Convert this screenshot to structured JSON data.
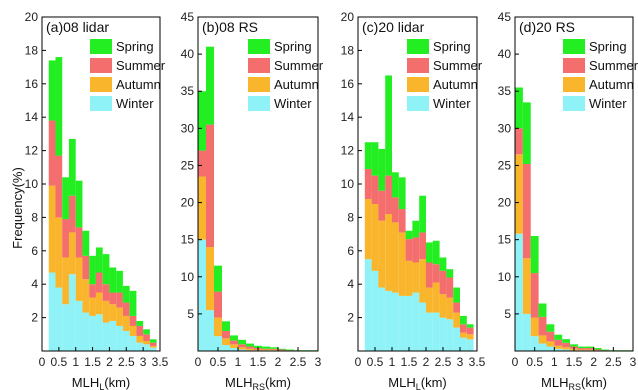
{
  "y_axis_label": "Frequency(%)",
  "season_colors": {
    "Winter": "#8ff2f7",
    "Autumn": "#f9b62d",
    "Summer": "#f46e6e",
    "Spring": "#22ee22"
  },
  "chart_data": [
    {
      "type": "bar",
      "stacked": true,
      "title": "(a)08 lidar",
      "xlabel_main": "MLH",
      "xlabel_sub": "L",
      "xlabel_unit": "(km)",
      "xlim": [
        0,
        3.5
      ],
      "ylim": [
        0,
        20
      ],
      "xticks": [
        0,
        0.5,
        1,
        1.5,
        2,
        2.5,
        3,
        3.5
      ],
      "xtick_labels": [
        "0",
        "0.5",
        "1",
        "1.5",
        "2",
        "2.5",
        "3",
        "3.5"
      ],
      "yticks": [
        2,
        4,
        6,
        8,
        10,
        12,
        14,
        16,
        18,
        20
      ],
      "yticks_labels": [
        "2",
        "4",
        "6",
        "8",
        "10",
        "12",
        "14",
        "16",
        "18",
        "20"
      ],
      "bin_edges": [
        0.2,
        0.4,
        0.6,
        0.8,
        1.0,
        1.2,
        1.4,
        1.6,
        1.8,
        2.0,
        2.2,
        2.4,
        2.6,
        2.8,
        3.0,
        3.2,
        3.4
      ],
      "legend": [
        "Spring",
        "Summer",
        "Autumn",
        "Winter"
      ],
      "legend_position": "top-right",
      "series": [
        {
          "name": "Winter",
          "values": [
            4.7,
            3.8,
            2.8,
            4.6,
            3.0,
            2.3,
            2.1,
            2.2,
            1.7,
            1.8,
            1.5,
            1.2,
            0.9,
            0.5,
            0.4,
            0.2
          ]
        },
        {
          "name": "Autumn",
          "values": [
            5.2,
            4.2,
            2.8,
            2.5,
            2.6,
            2.0,
            1.1,
            1.3,
            1.3,
            1.0,
            1.1,
            0.9,
            0.6,
            0.4,
            0.2,
            0.1
          ]
        },
        {
          "name": "Summer",
          "values": [
            3.9,
            3.7,
            2.3,
            2.2,
            1.8,
            1.4,
            0.8,
            1.2,
            1.0,
            0.7,
            0.9,
            0.8,
            0.6,
            0.6,
            0.4,
            0.2
          ]
        },
        {
          "name": "Spring",
          "values": [
            3.6,
            5.9,
            2.5,
            3.4,
            2.8,
            1.5,
            1.7,
            1.5,
            1.8,
            1.5,
            1.3,
            1.0,
            1.5,
            0.3,
            0.3,
            0.2
          ]
        }
      ]
    },
    {
      "type": "bar",
      "stacked": true,
      "title": "(b)08 RS",
      "xlabel_main": "MLH",
      "xlabel_sub": "RS",
      "xlabel_unit": "(km)",
      "xlim": [
        0,
        3
      ],
      "ylim": [
        0,
        45
      ],
      "xticks": [
        0,
        0.5,
        1,
        1.5,
        2,
        2.5,
        3
      ],
      "xtick_labels": [
        "0",
        "0.5",
        "1",
        "1.5",
        "2",
        "2.5",
        "3"
      ],
      "yticks": [
        5,
        10,
        15,
        20,
        25,
        30,
        35,
        40,
        45
      ],
      "yticks_labels": [
        "5",
        "10",
        "15",
        "20",
        "25",
        "30",
        "35",
        "40",
        "45"
      ],
      "bin_edges": [
        0.0,
        0.2,
        0.4,
        0.6,
        0.8,
        1.0,
        1.2,
        1.4,
        1.6,
        1.8,
        2.0,
        2.2,
        2.4,
        2.6,
        2.8,
        3.0
      ],
      "legend": [
        "Spring",
        "Summer",
        "Autumn",
        "Winter"
      ],
      "legend_position": "top-right",
      "series": [
        {
          "name": "Winter",
          "values": [
            15.0,
            5.5,
            2.0,
            0.8,
            0.4,
            0.2,
            0.1,
            0.1,
            0.1,
            0.1,
            0.0,
            0.0,
            0.0,
            0.0,
            0.0
          ]
        },
        {
          "name": "Autumn",
          "values": [
            8.5,
            8.5,
            2.5,
            0.9,
            0.5,
            0.3,
            0.2,
            0.1,
            0.1,
            0.1,
            0.1,
            0.0,
            0.0,
            0.0,
            0.0
          ]
        },
        {
          "name": "Summer",
          "values": [
            3.5,
            16.5,
            3.5,
            1.0,
            0.5,
            0.4,
            0.3,
            0.2,
            0.1,
            0.1,
            0.1,
            0.1,
            0.0,
            0.0,
            0.0
          ]
        },
        {
          "name": "Spring",
          "values": [
            8.0,
            10.5,
            3.5,
            1.3,
            0.7,
            0.6,
            0.4,
            0.3,
            0.3,
            0.2,
            0.1,
            0.1,
            0.1,
            0.1,
            0.1
          ]
        }
      ]
    },
    {
      "type": "bar",
      "stacked": true,
      "title": "(c)20 lidar",
      "xlabel_main": "MLH",
      "xlabel_sub": "L",
      "xlabel_unit": "(km)",
      "xlim": [
        0,
        3.5
      ],
      "ylim": [
        0,
        20
      ],
      "xticks": [
        0,
        0.5,
        1,
        1.5,
        2,
        2.5,
        3,
        3.5
      ],
      "xtick_labels": [
        "0",
        "0.5",
        "1",
        "1.5",
        "2",
        "2.5",
        "3",
        "3.5"
      ],
      "yticks": [
        2,
        4,
        6,
        8,
        10,
        12,
        14,
        16,
        18,
        20
      ],
      "yticks_labels": [
        "2",
        "4",
        "6",
        "8",
        "10",
        "12",
        "14",
        "16",
        "18",
        "20"
      ],
      "bin_edges": [
        0.2,
        0.4,
        0.6,
        0.8,
        1.0,
        1.2,
        1.4,
        1.6,
        1.8,
        2.0,
        2.2,
        2.4,
        2.6,
        2.8,
        3.0,
        3.2,
        3.4
      ],
      "legend": [
        "Spring",
        "Summer",
        "Autumn",
        "Winter"
      ],
      "legend_position": "top-right",
      "series": [
        {
          "name": "Winter",
          "values": [
            5.5,
            4.8,
            3.8,
            3.6,
            3.5,
            3.3,
            3.3,
            3.5,
            2.9,
            2.3,
            2.3,
            2.0,
            1.9,
            1.4,
            0.8,
            0.7
          ]
        },
        {
          "name": "Autumn",
          "values": [
            3.6,
            4.0,
            4.0,
            4.6,
            4.2,
            3.8,
            2.1,
            1.8,
            2.6,
            1.5,
            1.8,
            1.4,
            1.3,
            0.9,
            0.3,
            0.3
          ]
        },
        {
          "name": "Summer",
          "values": [
            1.8,
            1.7,
            1.8,
            2.3,
            1.5,
            1.4,
            1.3,
            1.5,
            1.6,
            1.5,
            1.1,
            1.4,
            1.2,
            0.6,
            0.5,
            0.4
          ]
        },
        {
          "name": "Spring",
          "values": [
            1.6,
            2.0,
            2.5,
            6.0,
            1.5,
            1.9,
            0.5,
            1.0,
            2.2,
            1.2,
            1.4,
            0.8,
            0.5,
            0.9,
            0.5,
            0.2
          ]
        }
      ]
    },
    {
      "type": "bar",
      "stacked": true,
      "title": "(d)20 RS",
      "xlabel_main": "MLH",
      "xlabel_sub": "RS",
      "xlabel_unit": "(km)",
      "xlim": [
        0,
        3
      ],
      "ylim": [
        0,
        45
      ],
      "xticks": [
        0,
        0.5,
        1,
        1.5,
        2,
        2.5,
        3
      ],
      "xtick_labels": [
        "0",
        "0.5",
        "1",
        "1.5",
        "2",
        "2.5",
        "3"
      ],
      "yticks": [
        5,
        10,
        15,
        20,
        25,
        30,
        35,
        40,
        45
      ],
      "yticks_labels": [
        "5",
        "10",
        "15",
        "20",
        "25",
        "30",
        "35",
        "40",
        "45"
      ],
      "bin_edges": [
        0.0,
        0.2,
        0.4,
        0.6,
        0.8,
        1.0,
        1.2,
        1.4,
        1.6,
        1.8,
        2.0,
        2.2,
        2.4,
        2.6,
        2.8,
        3.0
      ],
      "legend": [
        "Spring",
        "Summer",
        "Autumn",
        "Winter"
      ],
      "legend_position": "top-right",
      "series": [
        {
          "name": "Winter",
          "values": [
            15.8,
            5.0,
            2.0,
            1.0,
            0.6,
            0.3,
            0.2,
            0.1,
            0.1,
            0.1,
            0.0,
            0.0,
            0.0,
            0.0,
            0.0
          ]
        },
        {
          "name": "Autumn",
          "values": [
            10.7,
            7.5,
            2.5,
            1.1,
            0.7,
            0.4,
            0.3,
            0.2,
            0.1,
            0.1,
            0.1,
            0.0,
            0.0,
            0.0,
            0.0
          ]
        },
        {
          "name": "Summer",
          "values": [
            3.5,
            12.7,
            6.0,
            2.5,
            1.3,
            0.8,
            0.6,
            0.3,
            0.2,
            0.2,
            0.1,
            0.1,
            0.0,
            0.0,
            0.0
          ]
        },
        {
          "name": "Spring",
          "values": [
            5.5,
            8.3,
            5.0,
            1.8,
            1.0,
            0.7,
            0.5,
            0.3,
            0.2,
            0.2,
            0.2,
            0.1,
            0.1,
            0.1,
            0.1
          ]
        }
      ]
    }
  ]
}
